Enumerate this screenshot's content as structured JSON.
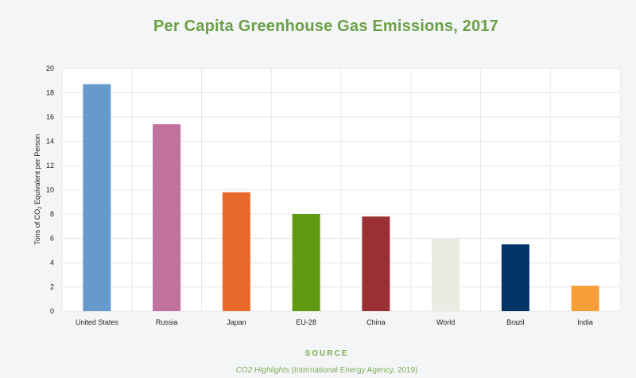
{
  "chart_data": {
    "type": "bar",
    "title": "Per Capita Greenhouse Gas Emissions, 2017",
    "ylabel_main": "Tons of CO",
    "ylabel_sub": "2",
    "ylabel_rest": " Equivalent per Person",
    "xlabel": "",
    "ylim": [
      0,
      20
    ],
    "yticks": [
      0,
      2,
      4,
      6,
      8,
      10,
      12,
      14,
      16,
      18,
      20
    ],
    "grid": true,
    "categories": [
      "United States",
      "Russia",
      "Japan",
      "EU-28",
      "China",
      "World",
      "Brazil",
      "India"
    ],
    "values": [
      18.7,
      15.4,
      9.8,
      8.0,
      7.8,
      6.0,
      5.5,
      2.1
    ],
    "colors": [
      "#6699cc",
      "#c0719e",
      "#e8692a",
      "#5e9a12",
      "#9a3034",
      "#ecebe3",
      "#003366",
      "#f7a03a"
    ]
  },
  "source": {
    "label": "SOURCE",
    "publication": "CO2 Highlights",
    "details": " (International Energy Agency, 2019)"
  }
}
